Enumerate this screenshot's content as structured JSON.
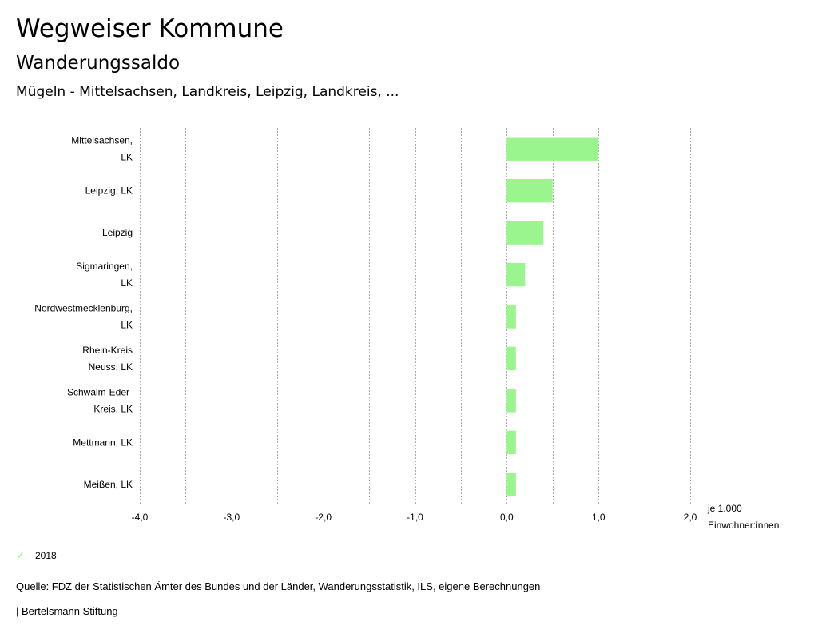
{
  "header": {
    "title": "Wegweiser Kommune",
    "subtitle": "Wanderungssaldo",
    "region": "Mügeln - Mittelsachsen, Landkreis, Leipzig, Landkreis, ..."
  },
  "chart_data": {
    "type": "bar",
    "orientation": "horizontal",
    "categories": [
      [
        "Mittelsachsen,",
        "LK"
      ],
      [
        "Leipzig, LK"
      ],
      [
        "Leipzig"
      ],
      [
        "Sigmaringen,",
        "LK"
      ],
      [
        "Nordwestmecklenburg,",
        "LK"
      ],
      [
        "Rhein-Kreis",
        "Neuss, LK"
      ],
      [
        "Schwalm-Eder-",
        "Kreis, LK"
      ],
      [
        "Mettmann, LK"
      ],
      [
        "Meißen, LK"
      ]
    ],
    "series": [
      {
        "name": "2018",
        "values": [
          1.0,
          0.5,
          0.4,
          0.2,
          0.1,
          0.1,
          0.1,
          0.1,
          0.1
        ]
      }
    ],
    "xlim": [
      -4.0,
      2.0
    ],
    "xticks": [
      -4.0,
      -3.0,
      -2.0,
      -1.0,
      0.0,
      1.0,
      2.0
    ],
    "xtick_labels": [
      "-4,0",
      "-3,0",
      "-2,0",
      "-1,0",
      "0,0",
      "1,0",
      "2,0"
    ],
    "grid_step": 0.5,
    "unit_label": [
      "je 1.000",
      "Einwohner:innen"
    ],
    "bar_color": "#9af58f",
    "grid_color": "#aaaaaa"
  },
  "legend": {
    "label": "2018",
    "icon": "check-icon"
  },
  "footer": {
    "source": "Quelle: FDZ der Statistischen Ämter des Bundes und der Länder, Wanderungsstatistik, ILS, eigene Berechnungen",
    "brand": "| Bertelsmann Stiftung"
  }
}
